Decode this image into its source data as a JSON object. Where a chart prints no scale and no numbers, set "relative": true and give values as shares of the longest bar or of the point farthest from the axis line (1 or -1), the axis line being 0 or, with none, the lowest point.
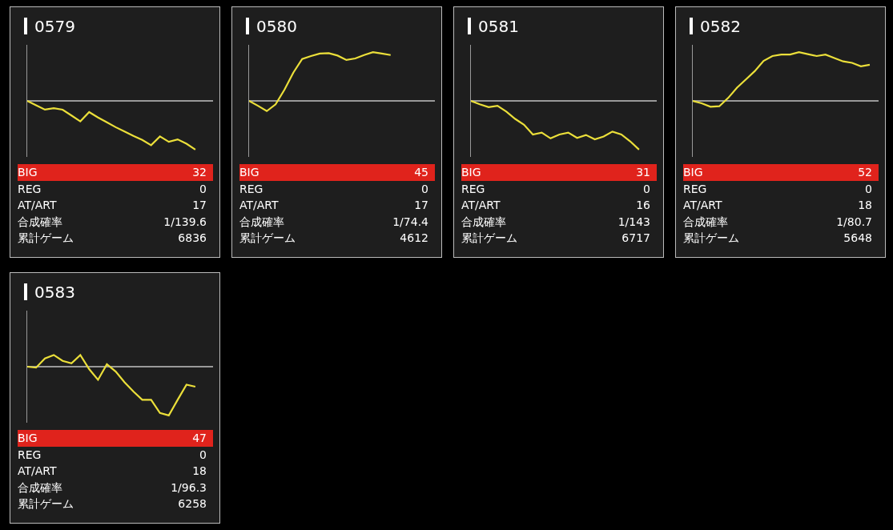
{
  "chart_data": [
    {
      "type": "line",
      "title": "0579",
      "relative": true,
      "categories": [
        null,
        null,
        null,
        null,
        null,
        null,
        null,
        null,
        null,
        null,
        null,
        null,
        null,
        null,
        null,
        null,
        null,
        null,
        null,
        null,
        null,
        null
      ],
      "series": [
        {
          "color": "#ebdf3a",
          "values": [
            0,
            -0.09,
            -0.18,
            -0.15,
            -0.18,
            -0.3,
            -0.42,
            -0.23,
            -0.34,
            -0.44,
            -0.54,
            -0.63,
            -0.72,
            -0.8,
            -0.91,
            -0.73,
            -0.84,
            -0.79,
            -0.88,
            -1,
            null,
            null
          ]
        }
      ],
      "annotations": [
        "BIG",
        "32",
        "REG",
        "0",
        "AT/ART",
        "17",
        "合成確率",
        "1/139.6",
        "累計ゲーム",
        "6836"
      ]
    },
    {
      "type": "line",
      "title": "0580",
      "relative": true,
      "categories": [
        null,
        null,
        null,
        null,
        null,
        null,
        null,
        null,
        null,
        null,
        null,
        null,
        null,
        null,
        null,
        null,
        null,
        null,
        null,
        null,
        null,
        null
      ],
      "series": [
        {
          "color": "#ebdf3a",
          "values": [
            0,
            -0.1,
            -0.21,
            -0.07,
            0.23,
            0.58,
            0.86,
            0.92,
            0.97,
            0.98,
            0.93,
            0.84,
            0.87,
            0.94,
            1,
            0.97,
            0.94,
            null,
            null,
            null,
            null,
            null
          ]
        }
      ],
      "annotations": [
        "BIG",
        "45",
        "REG",
        "0",
        "AT/ART",
        "17",
        "合成確率",
        "1/74.4",
        "累計ゲーム",
        "4612"
      ]
    },
    {
      "type": "line",
      "title": "0581",
      "relative": true,
      "categories": [
        null,
        null,
        null,
        null,
        null,
        null,
        null,
        null,
        null,
        null,
        null,
        null,
        null,
        null,
        null,
        null,
        null,
        null,
        null,
        null,
        null,
        null
      ],
      "series": [
        {
          "color": "#ebdf3a",
          "values": [
            0,
            -0.07,
            -0.13,
            -0.1,
            -0.22,
            -0.37,
            -0.49,
            -0.69,
            -0.65,
            -0.77,
            -0.69,
            -0.65,
            -0.76,
            -0.7,
            -0.79,
            -0.73,
            -0.63,
            -0.69,
            -0.83,
            -1,
            null,
            null
          ]
        }
      ],
      "annotations": [
        "BIG",
        "31",
        "REG",
        "0",
        "AT/ART",
        "16",
        "合成確率",
        "1/143",
        "累計ゲーム",
        "6717"
      ]
    },
    {
      "type": "line",
      "title": "0582",
      "relative": true,
      "categories": [
        null,
        null,
        null,
        null,
        null,
        null,
        null,
        null,
        null,
        null,
        null,
        null,
        null,
        null,
        null,
        null,
        null,
        null,
        null,
        null,
        null,
        null
      ],
      "series": [
        {
          "color": "#ebdf3a",
          "values": [
            0,
            -0.05,
            -0.12,
            -0.11,
            0.06,
            0.27,
            0.44,
            0.61,
            0.82,
            0.92,
            0.95,
            0.95,
            1,
            0.96,
            0.92,
            0.95,
            0.88,
            0.81,
            0.78,
            0.71,
            0.74,
            null
          ]
        }
      ],
      "annotations": [
        "BIG",
        "52",
        "REG",
        "0",
        "AT/ART",
        "18",
        "合成確率",
        "1/80.7",
        "累計ゲーム",
        "5648"
      ]
    },
    {
      "type": "line",
      "title": "0583",
      "relative": true,
      "categories": [
        null,
        null,
        null,
        null,
        null,
        null,
        null,
        null,
        null,
        null,
        null,
        null,
        null,
        null,
        null,
        null,
        null,
        null,
        null,
        null,
        null,
        null
      ],
      "series": [
        {
          "color": "#ebdf3a",
          "values": [
            0,
            -0.02,
            0.17,
            0.24,
            0.12,
            0.07,
            0.24,
            -0.05,
            -0.27,
            0.05,
            -0.1,
            -0.32,
            -0.51,
            -0.68,
            -0.68,
            -0.95,
            -1,
            -0.68,
            -0.37,
            -0.41,
            null,
            null
          ]
        }
      ],
      "annotations": [
        "BIG",
        "47",
        "REG",
        "0",
        "AT/ART",
        "18",
        "合成確率",
        "1/96.3",
        "累計ゲーム",
        "6258"
      ]
    }
  ]
}
